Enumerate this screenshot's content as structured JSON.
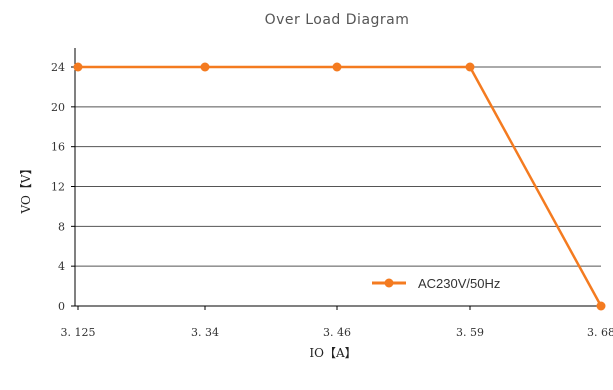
{
  "chart_data": {
    "type": "line",
    "title": "Over Load Diagram",
    "xlabel": "IO【A】",
    "ylabel": "VO【V】",
    "categories": [
      "3.125",
      "3.34",
      "3.46",
      "3.59",
      "3.68"
    ],
    "yticks": [
      "0",
      "4",
      "8",
      "12",
      "16",
      "20",
      "24"
    ],
    "ylim": [
      0,
      24
    ],
    "grid": true,
    "legend_position": "bottom-right",
    "series": [
      {
        "name": "AC230V/50Hz",
        "color": "#F47B20",
        "values": [
          24,
          24,
          24,
          24,
          0
        ]
      }
    ]
  }
}
